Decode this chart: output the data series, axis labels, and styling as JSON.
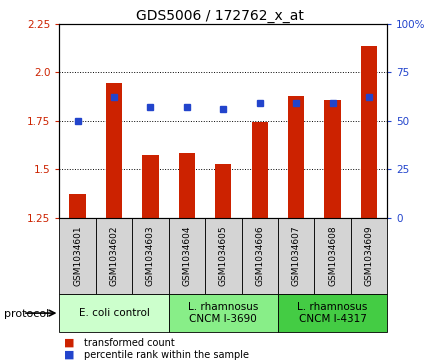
{
  "title": "GDS5006 / 172762_x_at",
  "samples": [
    "GSM1034601",
    "GSM1034602",
    "GSM1034603",
    "GSM1034604",
    "GSM1034605",
    "GSM1034606",
    "GSM1034607",
    "GSM1034608",
    "GSM1034609"
  ],
  "transformed_count": [
    1.375,
    1.945,
    1.575,
    1.585,
    1.525,
    1.745,
    1.875,
    1.855,
    2.135
  ],
  "percentile_rank": [
    50,
    62,
    57,
    57,
    56,
    59,
    59,
    59,
    62
  ],
  "ylim_left": [
    1.25,
    2.25
  ],
  "ylim_right": [
    0,
    100
  ],
  "yticks_left": [
    1.25,
    1.5,
    1.75,
    2.0,
    2.25
  ],
  "yticks_right": [
    0,
    25,
    50,
    75,
    100
  ],
  "ytick_labels_right": [
    "0",
    "25",
    "50",
    "75",
    "100%"
  ],
  "bar_color": "#cc2200",
  "dot_color": "#2244cc",
  "bar_width": 0.45,
  "groups": [
    {
      "label": "E. coli control",
      "indices": [
        0,
        1,
        2
      ],
      "color": "#ccffcc"
    },
    {
      "label": "L. rhamnosus\nCNCM I-3690",
      "indices": [
        3,
        4,
        5
      ],
      "color": "#88ee88"
    },
    {
      "label": "L. rhamnosus\nCNCM I-4317",
      "indices": [
        6,
        7,
        8
      ],
      "color": "#44cc44"
    }
  ],
  "protocol_label": "protocol",
  "legend_items": [
    {
      "label": "transformed count",
      "color": "#cc2200"
    },
    {
      "label": "percentile rank within the sample",
      "color": "#2244cc"
    }
  ],
  "sample_box_color": "#d4d4d4",
  "title_fontsize": 10,
  "tick_fontsize": 7.5,
  "label_fontsize": 7,
  "group_fontsize": 7.5
}
